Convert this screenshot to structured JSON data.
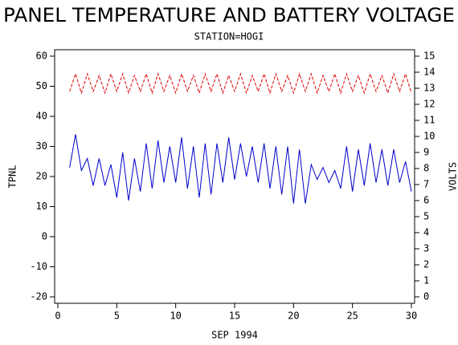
{
  "chart_data": {
    "type": "line",
    "title": "PANEL TEMPERATURE AND BATTERY VOLTAGE",
    "subtitle": "STATION=HOGI",
    "x_label": "SEP 1994",
    "y_label": "TPNL",
    "y2_label": "VOLTS",
    "x": [
      1,
      1.5,
      2,
      2.5,
      3,
      3.5,
      4,
      4.5,
      5,
      5.5,
      6,
      6.5,
      7,
      7.5,
      8,
      8.5,
      9,
      9.5,
      10,
      10.5,
      11,
      11.5,
      12,
      12.5,
      13,
      13.5,
      14,
      14.5,
      15,
      15.5,
      16,
      16.5,
      17,
      17.5,
      18,
      18.5,
      19,
      19.5,
      20,
      20.5,
      21,
      21.5,
      22,
      22.5,
      23,
      23.5,
      24,
      24.5,
      25,
      25.5,
      26,
      26.5,
      27,
      27.5,
      28,
      28.5,
      29,
      29.5,
      30
    ],
    "series": [
      {
        "name": "TPNL",
        "color": "#0000cc",
        "dashed": false,
        "values": [
          23,
          34,
          22,
          26,
          17,
          26,
          17,
          24,
          13,
          28,
          12,
          26,
          15,
          31,
          16,
          32,
          18,
          30,
          18,
          33,
          16,
          30,
          13,
          31,
          14,
          31,
          18,
          33,
          19,
          31,
          20,
          30,
          18,
          31,
          16,
          30,
          14,
          30,
          11,
          29,
          11,
          24,
          19,
          23,
          18,
          22,
          16,
          30,
          15,
          29,
          17,
          31,
          18,
          29,
          17,
          29,
          18,
          25,
          15
        ]
      },
      {
        "name": "VOLTS",
        "color": "#dd0000",
        "dashed": true,
        "axis": "y2",
        "values": [
          12.8,
          13.9,
          12.7,
          13.9,
          12.8,
          13.8,
          12.7,
          13.9,
          12.8,
          13.9,
          12.7,
          13.8,
          12.8,
          13.9,
          12.7,
          13.9,
          12.8,
          13.8,
          12.7,
          13.9,
          12.8,
          13.8,
          12.7,
          13.9,
          12.8,
          13.9,
          12.7,
          13.8,
          12.8,
          13.9,
          12.7,
          13.8,
          12.8,
          13.9,
          12.7,
          13.9,
          12.8,
          13.8,
          12.7,
          13.9,
          12.8,
          13.9,
          12.7,
          13.8,
          12.8,
          13.9,
          12.7,
          13.9,
          12.8,
          13.8,
          12.7,
          13.9,
          12.8,
          13.8,
          12.7,
          13.9,
          12.8,
          13.9,
          12.7
        ]
      }
    ],
    "xlim": [
      0,
      30
    ],
    "xticks": [
      0,
      5,
      10,
      15,
      20,
      25,
      30
    ],
    "ylim": [
      -20,
      60
    ],
    "yticks": [
      -20,
      -10,
      0,
      10,
      20,
      30,
      40,
      50,
      60
    ],
    "y2lim": [
      0,
      15
    ],
    "y2ticks": [
      0,
      1,
      2,
      3,
      4,
      5,
      6,
      7,
      8,
      9,
      10,
      11,
      12,
      13,
      14,
      15
    ]
  }
}
